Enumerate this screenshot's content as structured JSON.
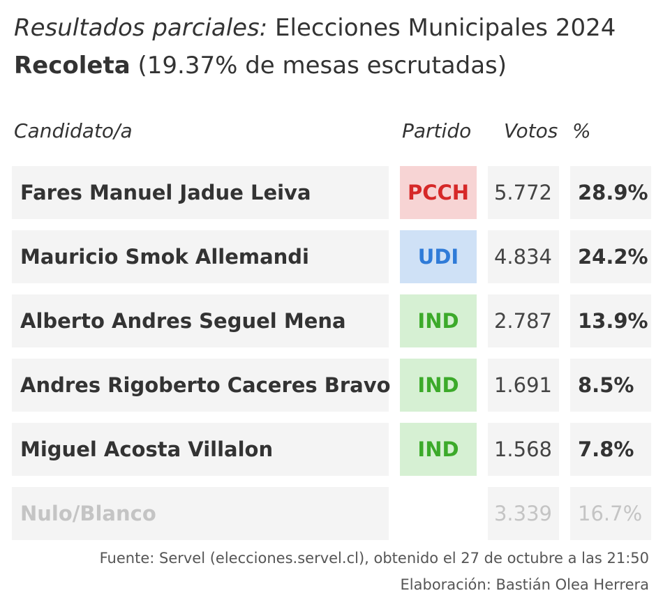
{
  "title_italic": "Resultados parciales:",
  "title_rest": " Elecciones Municipales 2024",
  "commune": "Recoleta",
  "subtitle_rest": " (19.37% de mesas escrutadas)",
  "headers": {
    "candidate": "Candidato/a",
    "party": "Partido",
    "votes": "Votos",
    "pct": "%"
  },
  "party_colors": {
    "PCCH": {
      "bg": "#f7d4d4",
      "fg": "#d62828"
    },
    "UDI": {
      "bg": "#cfe1f6",
      "fg": "#2f7bd8"
    },
    "IND": {
      "bg": "#d6f0d3",
      "fg": "#3caa2a"
    }
  },
  "chart_data": {
    "type": "table",
    "columns": [
      "Candidato/a",
      "Partido",
      "Votos",
      "%"
    ],
    "rows": [
      {
        "name": "Fares Manuel Jadue Leiva",
        "party": "PCCH",
        "votes": "5.772",
        "pct": "28.9%"
      },
      {
        "name": "Mauricio Smok Allemandi",
        "party": "UDI",
        "votes": "4.834",
        "pct": "24.2%"
      },
      {
        "name": "Alberto Andres Seguel Mena",
        "party": "IND",
        "votes": "2.787",
        "pct": "13.9%"
      },
      {
        "name": "Andres Rigoberto Caceres Bravo",
        "party": "IND",
        "votes": "1.691",
        "pct": "8.5%"
      },
      {
        "name": "Miguel Acosta Villalon",
        "party": "IND",
        "votes": "1.568",
        "pct": "7.8%"
      },
      {
        "name": "Nulo/Blanco",
        "party": "",
        "votes": "3.339",
        "pct": "16.7%"
      }
    ]
  },
  "footer": {
    "source": "Fuente: Servel (elecciones.servel.cl), obtenido el 27 de octubre a las 21:50",
    "credit": "Elaboración: Bastián Olea Herrera"
  }
}
